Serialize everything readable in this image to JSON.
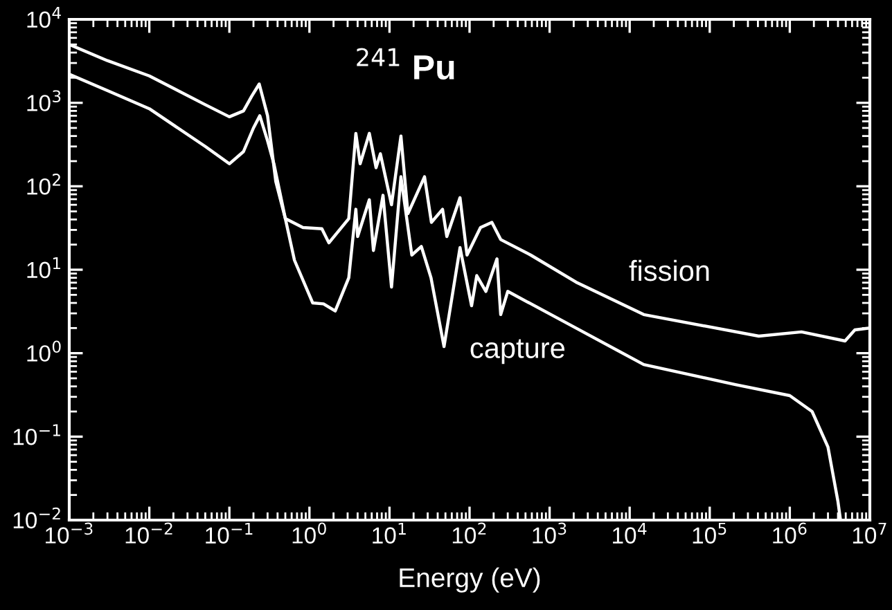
{
  "chart_data": {
    "type": "line",
    "title": "$^{241}$ Pu",
    "xlabel": "Energy (eV)",
    "log": "xy",
    "grid": false,
    "legend": false,
    "marker": "none",
    "line_style": "solid",
    "xlim": [
      0.001,
      10000000
    ],
    "ylim": [
      0.01,
      10000
    ],
    "xticks": [
      {
        "value": 0.001,
        "label": "10$^{−3}$"
      },
      {
        "value": 0.01,
        "label": "10$^{−2}$"
      },
      {
        "value": 0.1,
        "label": "10$^{−1}$"
      },
      {
        "value": 1,
        "label": "10$^{0}$"
      },
      {
        "value": 10,
        "label": "10$^{1}$"
      },
      {
        "value": 100,
        "label": "10$^{2}$"
      },
      {
        "value": 1000,
        "label": "10$^{3}$"
      },
      {
        "value": 10000,
        "label": "10$^{4}$"
      },
      {
        "value": 100000,
        "label": "10$^{5}$"
      },
      {
        "value": 1000000,
        "label": "10$^{6}$"
      },
      {
        "value": 10000000,
        "label": "10$^{7}$"
      }
    ],
    "yticks": [
      {
        "value": 0.01,
        "label": "10$^{−2}$"
      },
      {
        "value": 0.1,
        "label": "10$^{−1}$"
      },
      {
        "value": 1,
        "label": "10$^{0}$"
      },
      {
        "value": 10,
        "label": "10$^{1}$"
      },
      {
        "value": 100,
        "label": "10$^{2}$"
      },
      {
        "value": 1000,
        "label": "10$^{3}$"
      },
      {
        "value": 10000,
        "label": "10$^{4}$"
      }
    ],
    "series": [
      {
        "name": "fission",
        "color": "#ffffff",
        "x": [
          0.001,
          0.003,
          0.01,
          0.05,
          0.1,
          0.15,
          0.19,
          0.236,
          0.3,
          0.38,
          0.5,
          0.83,
          1.43,
          1.75,
          3.1,
          3.8,
          4.3,
          5.6,
          6.8,
          7.7,
          10.6,
          13.9,
          17,
          27.4,
          33.4,
          46,
          52,
          76,
          93,
          137,
          190,
          245,
          580,
          2140,
          15000,
          410000,
          1400000,
          4900000,
          6500000,
          10000000
        ],
        "values": [
          5000,
          3200,
          2100,
          950,
          680,
          800,
          1200,
          1680,
          700,
          114,
          41,
          32,
          31,
          21,
          41,
          430,
          186,
          430,
          167,
          245,
          60,
          400,
          47,
          130,
          37,
          53,
          25,
          73,
          15,
          32,
          37,
          23,
          15,
          7.1,
          2.9,
          1.6,
          1.8,
          1.4,
          1.9,
          2.0
        ]
      },
      {
        "name": "capture",
        "color": "#ffffff",
        "x": [
          0.001,
          0.003,
          0.01,
          0.05,
          0.1,
          0.15,
          0.2,
          0.24,
          0.3,
          0.36,
          0.5,
          0.65,
          1.1,
          1.5,
          2.1,
          3.1,
          3.8,
          4,
          5.6,
          6.3,
          8.3,
          10.6,
          13.9,
          19,
          25,
          33,
          48,
          76,
          106,
          123,
          160,
          220,
          245,
          300,
          2140,
          15000,
          210000,
          1000000,
          1900000,
          3000000,
          4000000,
          4300000
        ],
        "values": [
          2200,
          1400,
          850,
          300,
          186,
          260,
          500,
          700,
          350,
          186,
          41,
          13,
          4.0,
          3.9,
          3.2,
          8,
          53,
          25,
          69,
          17,
          78,
          6.2,
          130,
          15,
          19,
          8,
          1.2,
          18.4,
          3.7,
          8.5,
          5.5,
          13.5,
          2.9,
          5.5,
          2.0,
          0.73,
          0.42,
          0.31,
          0.2,
          0.075,
          0.0166,
          0.01
        ]
      }
    ]
  }
}
